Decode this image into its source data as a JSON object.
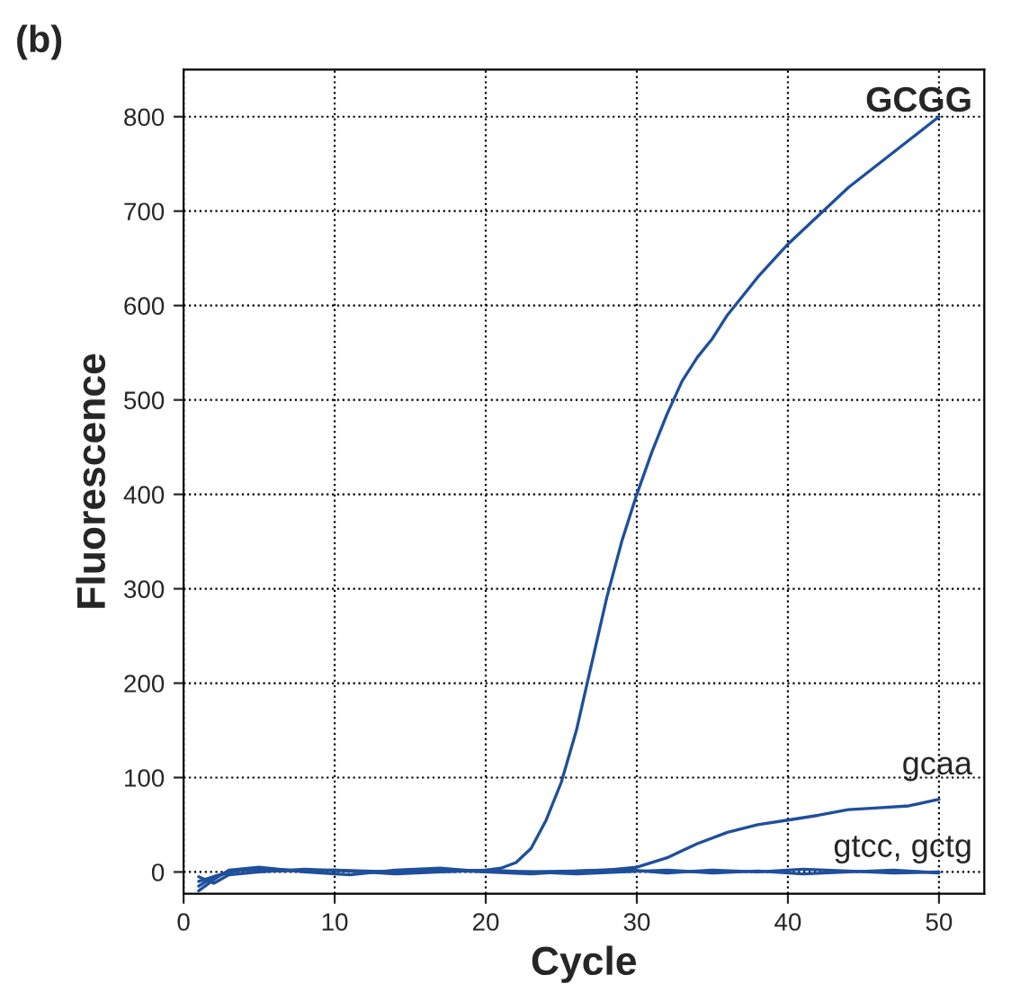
{
  "chart_data": {
    "type": "line",
    "xlabel": "Cycle",
    "ylabel": "Fluorescence",
    "xlim": [
      0,
      53
    ],
    "ylim": [
      -23,
      850
    ],
    "xticks": [
      0,
      10,
      20,
      30,
      40,
      50
    ],
    "yticks": [
      0,
      100,
      200,
      300,
      400,
      500,
      600,
      700,
      800
    ],
    "grid": true,
    "marker": "none",
    "line_style": "solid",
    "series": [
      {
        "color": "#1f4f9c",
        "x": [
          1,
          2,
          3,
          4,
          6,
          8,
          10,
          12,
          14,
          16,
          18,
          20,
          21,
          22,
          23,
          24,
          25,
          26,
          27,
          28,
          29,
          30,
          31,
          32,
          33,
          34,
          35,
          36,
          38,
          40,
          42,
          44,
          46,
          48,
          50
        ],
        "values": [
          -10,
          -5,
          0,
          2,
          3,
          1,
          2,
          0,
          1,
          2,
          1,
          2,
          4,
          10,
          25,
          55,
          95,
          150,
          220,
          290,
          350,
          400,
          445,
          485,
          520,
          545,
          565,
          590,
          630,
          665,
          695,
          725,
          750,
          775,
          800
        ]
      },
      {
        "color": "#1f4f9c",
        "x": [
          1,
          2,
          4,
          6,
          10,
          14,
          18,
          22,
          26,
          28,
          30,
          32,
          34,
          36,
          38,
          40,
          42,
          44,
          46,
          48,
          50
        ],
        "values": [
          -15,
          -5,
          3,
          1,
          2,
          0,
          1,
          0,
          1,
          2,
          5,
          15,
          30,
          42,
          50,
          55,
          60,
          66,
          68,
          70,
          77
        ]
      },
      {
        "color": "#1f4f9c",
        "x": [
          1,
          2,
          3,
          5,
          8,
          11,
          14,
          17,
          20,
          23,
          26,
          29,
          32,
          35,
          38,
          41,
          44,
          47,
          50
        ],
        "values": [
          -20,
          -8,
          2,
          5,
          0,
          -3,
          2,
          4,
          0,
          -2,
          1,
          3,
          -1,
          2,
          0,
          3,
          1,
          -1,
          0
        ]
      },
      {
        "color": "#1f4f9c",
        "x": [
          1,
          2,
          3,
          5,
          8,
          11,
          14,
          17,
          20,
          23,
          26,
          29,
          32,
          35,
          38,
          41,
          44,
          47,
          50
        ],
        "values": [
          -5,
          -12,
          -3,
          0,
          3,
          1,
          -2,
          0,
          2,
          0,
          -2,
          0,
          2,
          -1,
          1,
          -2,
          0,
          2,
          -1
        ]
      }
    ],
    "annotations": [
      "(b)",
      "GCGG",
      "gcaa",
      "gtcc, gctg"
    ]
  }
}
